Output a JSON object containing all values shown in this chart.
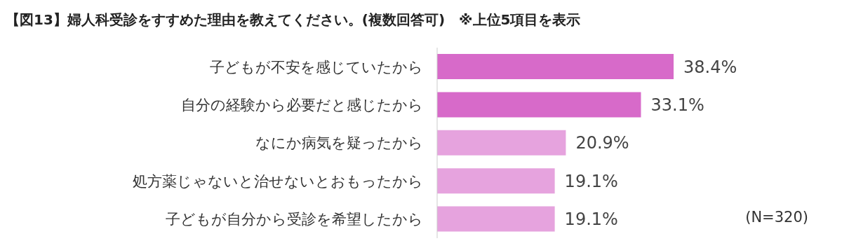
{
  "chart_data": {
    "type": "bar",
    "orientation": "horizontal",
    "title": "【図13】婦人科受診をすすめた理由を教えてください。(複数回答可)　※上位5項目を表示",
    "categories": [
      "子どもが不安を感じていたから",
      "自分の経験から必要だと感じたから",
      "なにか病気を疑ったから",
      "処方薬じゃないと治せないとおもったから",
      "子どもが自分から受診を希望したから"
    ],
    "values": [
      38.4,
      33.1,
      20.9,
      19.1,
      19.1
    ],
    "colors": [
      "#d76ac9",
      "#d76ac9",
      "#e6a3de",
      "#e6a3de",
      "#e6a3de"
    ],
    "value_labels": [
      "38.4%",
      "33.1%",
      "20.9%",
      "19.1%",
      "19.1%"
    ],
    "annotations": [
      "(N=320)"
    ],
    "grid": false,
    "legend": false
  }
}
